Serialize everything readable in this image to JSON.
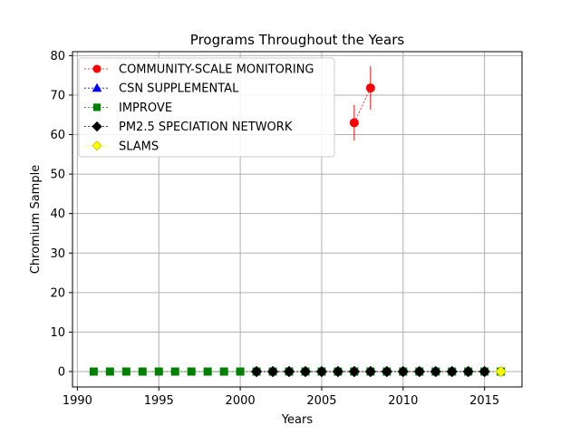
{
  "chart_data": {
    "type": "line",
    "title": "Programs Throughout the Years",
    "xlabel": "Years",
    "ylabel": "Chromium Sample",
    "xlim": [
      1989.7,
      2017.3
    ],
    "ylim": [
      -3.9,
      81
    ],
    "xticks": [
      1990,
      1995,
      2000,
      2005,
      2010,
      2015
    ],
    "yticks": [
      0,
      10,
      20,
      30,
      40,
      50,
      60,
      70,
      80
    ],
    "grid": true,
    "legend_position": "top-left",
    "series": [
      {
        "name": "COMMUNITY-SCALE MONITORING",
        "color": "#ff0000",
        "marker": "circle",
        "x": [
          2007,
          2008
        ],
        "y": [
          63,
          71.8
        ],
        "err": [
          4.5,
          5.5
        ]
      },
      {
        "name": "CSN SUPPLEMENTAL",
        "color": "#0000ff",
        "marker": "triangle",
        "x": [],
        "y": [],
        "err": []
      },
      {
        "name": "IMPROVE",
        "color": "#008000",
        "marker": "square",
        "x": [
          1991,
          1992,
          1993,
          1994,
          1995,
          1996,
          1997,
          1998,
          1999,
          2000,
          2001,
          2002,
          2003,
          2004,
          2005,
          2006,
          2007,
          2008,
          2009,
          2010,
          2011,
          2012,
          2013,
          2014,
          2015,
          2016
        ],
        "y": [
          0,
          0,
          0,
          0,
          0,
          0,
          0,
          0,
          0,
          0,
          0,
          0,
          0,
          0,
          0,
          0,
          0,
          0,
          0,
          0,
          0,
          0,
          0,
          0,
          0,
          0
        ],
        "err": []
      },
      {
        "name": "PM2.5 SPECIATION NETWORK",
        "color": "#000000",
        "marker": "diamond",
        "x": [
          2001,
          2002,
          2003,
          2004,
          2005,
          2006,
          2007,
          2008,
          2009,
          2010,
          2011,
          2012,
          2013,
          2014,
          2015
        ],
        "y": [
          0,
          0,
          0,
          0,
          0,
          0,
          0,
          0,
          0,
          0,
          0,
          0,
          0,
          0,
          0
        ],
        "err": []
      },
      {
        "name": "SLAMS",
        "color": "#ffff00",
        "marker": "diamond",
        "x": [
          2016
        ],
        "y": [
          0
        ],
        "err": []
      }
    ]
  }
}
